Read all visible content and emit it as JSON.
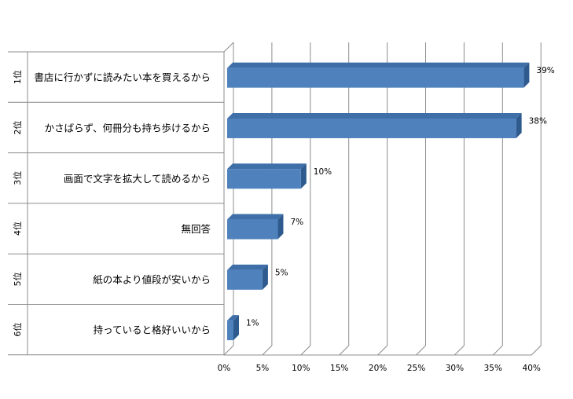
{
  "chart_data": {
    "type": "bar",
    "orientation": "horizontal",
    "style": "3d",
    "ranks": [
      "1位",
      "2位",
      "3位",
      "4位",
      "5位",
      "6位"
    ],
    "categories": [
      "書店に行かずに読みたい本を買えるから",
      "かさばらず、何冊分も持ち歩けるから",
      "画面で文字を拡大して読めるから",
      "無回答",
      "紙の本より値段が安いから",
      "持っていると格好いいから"
    ],
    "values": [
      39,
      38,
      10,
      7,
      5,
      1
    ],
    "data_labels": [
      "39%",
      "38%",
      "10%",
      "7%",
      "5%",
      "1%"
    ],
    "xlim": [
      0,
      40
    ],
    "x_ticks": [
      0,
      5,
      10,
      15,
      20,
      25,
      30,
      35,
      40
    ],
    "x_tick_labels": [
      "0%",
      "5%",
      "10%",
      "15%",
      "20%",
      "25%",
      "30%",
      "35%",
      "40%"
    ],
    "grid": true,
    "bar_color": "#4F81BD",
    "bar_top_color": "#3F6FA8",
    "bar_side_color": "#2E5A8E"
  }
}
